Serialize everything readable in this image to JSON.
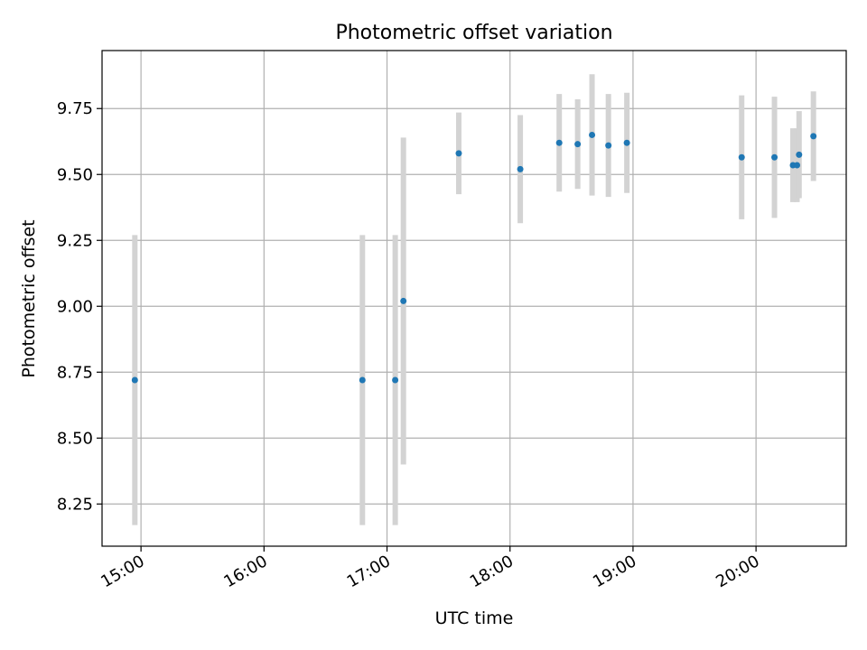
{
  "chart_data": {
    "type": "scatter",
    "title": "Photometric offset variation",
    "xlabel": "UTC time",
    "ylabel": "Photometric offset",
    "x_axis_type": "time",
    "x_ticks": [
      "15:00",
      "16:00",
      "17:00",
      "18:00",
      "19:00",
      "20:00"
    ],
    "y_ticks": [
      "8.25",
      "8.50",
      "8.75",
      "9.00",
      "9.25",
      "9.50",
      "9.75"
    ],
    "xlim": [
      "14:41",
      "20:44"
    ],
    "ylim": [
      8.09,
      9.97
    ],
    "grid": true,
    "series": [
      {
        "marker_color": "#1f77b4",
        "errorbar_color": "#d3d3d3",
        "points": [
          {
            "x": "14:57",
            "y": 8.72,
            "err": 0.55
          },
          {
            "x": "16:48",
            "y": 8.72,
            "err": 0.55
          },
          {
            "x": "17:04",
            "y": 8.72,
            "err": 0.55
          },
          {
            "x": "17:08",
            "y": 9.02,
            "err": 0.62
          },
          {
            "x": "17:35",
            "y": 9.58,
            "err": 0.155
          },
          {
            "x": "18:05",
            "y": 9.52,
            "err": 0.205
          },
          {
            "x": "18:24",
            "y": 9.62,
            "err": 0.185
          },
          {
            "x": "18:33",
            "y": 9.615,
            "err": 0.17
          },
          {
            "x": "18:40",
            "y": 9.65,
            "err": 0.23
          },
          {
            "x": "18:48",
            "y": 9.61,
            "err": 0.195
          },
          {
            "x": "18:57",
            "y": 9.62,
            "err": 0.19
          },
          {
            "x": "19:53",
            "y": 9.565,
            "err": 0.235
          },
          {
            "x": "20:09",
            "y": 9.565,
            "err": 0.23
          },
          {
            "x": "20:18",
            "y": 9.535,
            "err": 0.14
          },
          {
            "x": "20:20",
            "y": 9.535,
            "err": 0.14
          },
          {
            "x": "20:21",
            "y": 9.575,
            "err": 0.165
          },
          {
            "x": "20:28",
            "y": 9.645,
            "err": 0.17
          }
        ]
      }
    ]
  }
}
